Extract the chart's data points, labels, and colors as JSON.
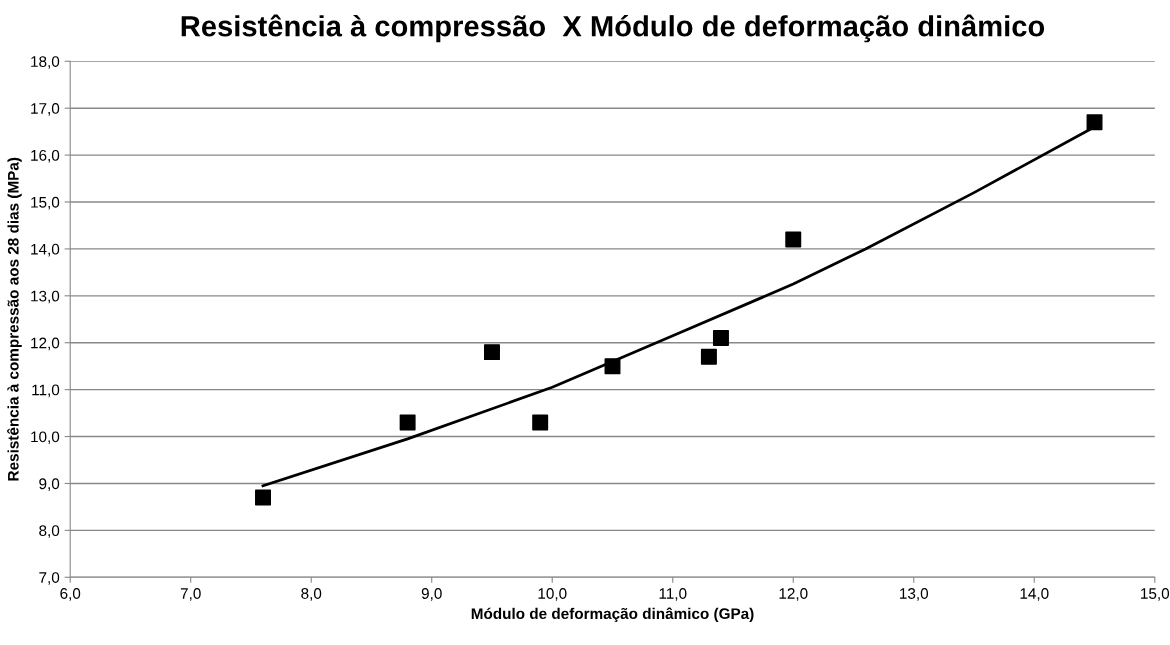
{
  "chart_data": {
    "type": "scatter",
    "title": "Resistência à compressão  X Módulo de deformação dinâmico",
    "xlabel": "Módulo de deformação dinâmico (GPa)",
    "ylabel": "Resistência à compressão aos 28 dias (MPa)",
    "series": [
      {
        "color": "#000000",
        "marker": "square",
        "x": [
          7.6,
          8.8,
          9.5,
          9.9,
          10.5,
          11.3,
          11.4,
          12.0,
          14.5
        ],
        "values": [
          8.7,
          10.3,
          11.8,
          10.3,
          11.5,
          11.7,
          12.1,
          14.2,
          16.7
        ]
      },
      {
        "type": "line",
        "color": "#000000",
        "marker": "none",
        "line_style": "solid",
        "x": [
          7.6,
          8.8,
          10.0,
          11.0,
          12.0,
          12.6,
          13.5,
          14.5
        ],
        "values": [
          8.95,
          9.95,
          11.05,
          12.15,
          13.25,
          14.0,
          15.2,
          16.6
        ]
      }
    ],
    "xlim": [
      6.0,
      15.0
    ],
    "ylim": [
      7.0,
      18.0
    ],
    "xticks": [
      {
        "value": 6,
        "label": "6,0"
      },
      {
        "value": 7,
        "label": "7,0"
      },
      {
        "value": 8,
        "label": "8,0"
      },
      {
        "value": 9,
        "label": "9,0"
      },
      {
        "value": 10,
        "label": "10,0"
      },
      {
        "value": 11,
        "label": "11,0"
      },
      {
        "value": 12,
        "label": "12,0"
      },
      {
        "value": 13,
        "label": "13,0"
      },
      {
        "value": 14,
        "label": "14,0"
      },
      {
        "value": 15,
        "label": "15,0"
      }
    ],
    "yticks": [
      {
        "value": 7,
        "label": "7,0"
      },
      {
        "value": 8,
        "label": "8,0"
      },
      {
        "value": 9,
        "label": "9,0"
      },
      {
        "value": 10,
        "label": "10,0"
      },
      {
        "value": 11,
        "label": "11,0"
      },
      {
        "value": 12,
        "label": "12,0"
      },
      {
        "value": 13,
        "label": "13,0"
      },
      {
        "value": 14,
        "label": "14,0"
      },
      {
        "value": 15,
        "label": "15,0"
      },
      {
        "value": 16,
        "label": "16,0"
      },
      {
        "value": 17,
        "label": "17,0"
      },
      {
        "value": 18,
        "label": "18,0"
      }
    ],
    "grid": "y"
  }
}
